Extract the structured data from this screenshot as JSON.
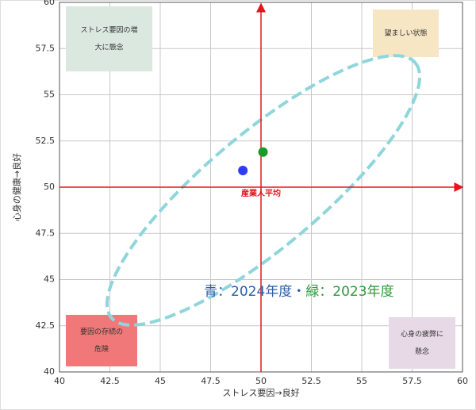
{
  "chart_data": {
    "type": "scatter",
    "xlabel": "ストレス要因→良好",
    "ylabel": "心身の健康→良好",
    "xlim": [
      40,
      60
    ],
    "ylim": [
      40,
      60
    ],
    "xticks": [
      40,
      42.5,
      45,
      47.5,
      50,
      52.5,
      55,
      57.5,
      60
    ],
    "yticks": [
      40,
      42.5,
      45,
      47.5,
      50,
      52.5,
      55,
      57.5,
      60
    ],
    "grid": true,
    "points": [
      {
        "x": 49.1,
        "y": 50.9,
        "color": "#2f3cf2"
      },
      {
        "x": 50.1,
        "y": 51.9,
        "color": "#1a9a2a"
      }
    ],
    "reference": {
      "x": 50,
      "y": 50,
      "label": "産業人平均",
      "color": "#e8141c"
    },
    "note": [
      {
        "text": "青：2024年度",
        "color": "#2a5fa8"
      },
      {
        "text": "・",
        "color": "#2a5fa8"
      },
      {
        "text": "緑：2023年度",
        "color": "#2e9a3a"
      }
    ],
    "quadrants": [
      {
        "lines": [
          "ストレス要因の増",
          "大に懸念"
        ],
        "color": "#dbe8df"
      },
      {
        "lines": [
          "望ましい状態"
        ],
        "color": "#f7e6c4"
      },
      {
        "lines": [
          "要因の存続の",
          "危険"
        ],
        "color": "#f07878"
      },
      {
        "lines": [
          "心身の疲弊に",
          "懸念"
        ],
        "color": "#e8d9e6"
      }
    ]
  }
}
